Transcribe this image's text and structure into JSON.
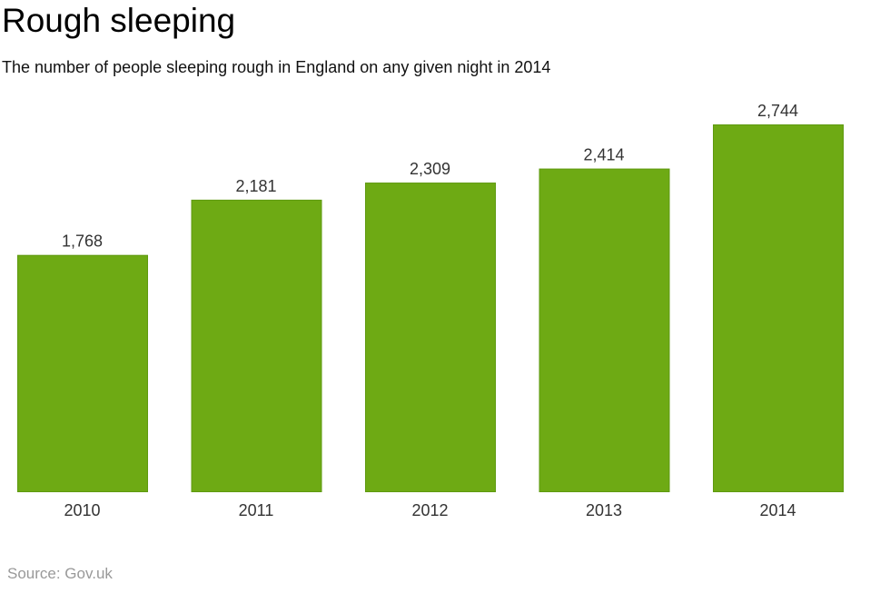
{
  "chart_data": {
    "type": "bar",
    "title": "Rough sleeping",
    "subtitle": "The number of people sleeping rough in England on any given night in 2014",
    "categories": [
      "2010",
      "2011",
      "2012",
      "2013",
      "2014"
    ],
    "values": [
      1768,
      2181,
      2309,
      2414,
      2744
    ],
    "data_labels": [
      "1,768",
      "2,181",
      "2,309",
      "2,414",
      "2,744"
    ],
    "xlabel": "",
    "ylabel": "",
    "ylim": [
      0,
      2744
    ],
    "grid": false,
    "bar_color": "#6eaa14",
    "bar_edge_color": "#5f9a10"
  },
  "source": "Source: Gov.uk"
}
